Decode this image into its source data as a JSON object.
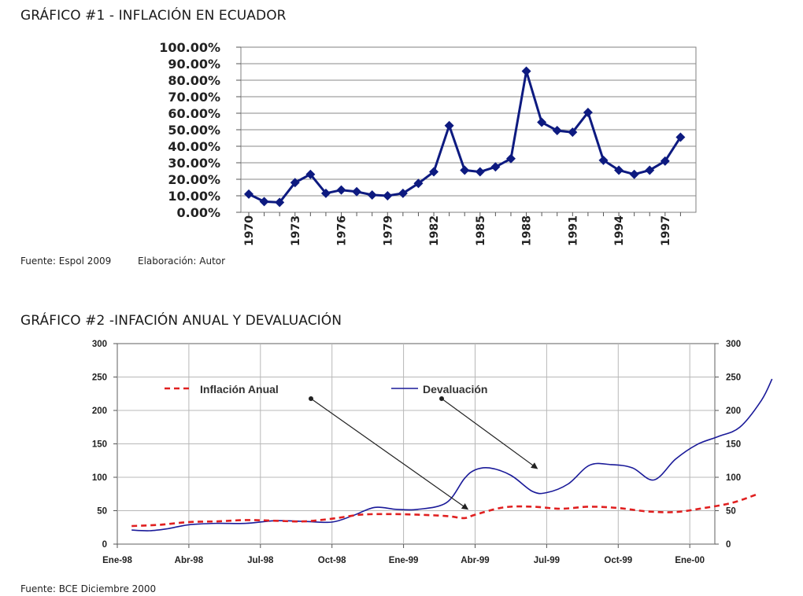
{
  "page": {
    "title1": "GRÁFICO #1 - INFLACIÓN EN ECUADOR",
    "source1": "Fuente: Espol 2009",
    "elaboration1": "Elaboración: Autor",
    "title2": "GRÁFICO #2 -INFACIÓN ANUAL Y DEVALUACIÓN",
    "source2": "Fuente: BCE Diciembre 2000"
  },
  "chart_data": [
    {
      "type": "line",
      "title": "GRÁFICO #1 - INFLACIÓN EN ECUADOR",
      "xlabel": "",
      "ylabel": "",
      "ylim": [
        0,
        100
      ],
      "yticks": [
        "0.00%",
        "10.00%",
        "20.00%",
        "30.00%",
        "40.00%",
        "50.00%",
        "60.00%",
        "70.00%",
        "80.00%",
        "90.00%",
        "100.00%"
      ],
      "xticks": [
        "1970",
        "1973",
        "1976",
        "1979",
        "1982",
        "1985",
        "1988",
        "1991",
        "1994",
        "1997"
      ],
      "grid": true,
      "color": "#0d1a80",
      "series": [
        {
          "name": "Inflación",
          "x": [
            1970,
            1971,
            1972,
            1973,
            1974,
            1975,
            1976,
            1977,
            1978,
            1979,
            1980,
            1981,
            1982,
            1983,
            1984,
            1985,
            1986,
            1987,
            1988,
            1989,
            1990,
            1991,
            1992,
            1993,
            1994,
            1995,
            1996,
            1997,
            1998
          ],
          "values": [
            11,
            6.5,
            6,
            18,
            23,
            11.5,
            13.5,
            12.5,
            10.5,
            10,
            11.5,
            17.5,
            24.5,
            52.5,
            25.5,
            24.5,
            27.5,
            32.5,
            85.5,
            54.5,
            49.5,
            48.5,
            60.5,
            31.5,
            25.5,
            23,
            25.5,
            31,
            45.5
          ]
        }
      ]
    },
    {
      "type": "line",
      "title": "GRÁFICO #2 -INFACIÓN ANUAL Y DEVALUACIÓN",
      "ylim": [
        0,
        300
      ],
      "yticks": [
        "0",
        "50",
        "100",
        "150",
        "200",
        "250",
        "300"
      ],
      "categories": [
        "Ene-98",
        "Abr-98",
        "Jul-98",
        "Oct-98",
        "Ene-99",
        "Abr-99",
        "Jul-99",
        "Oct-99",
        "Ene-00"
      ],
      "grid": true,
      "legend": "top-left",
      "series": [
        {
          "name": "Inflación Anual",
          "color": "#e02020",
          "style": "dashed",
          "x": [
            0.2,
            0.6,
            1.0,
            1.4,
            1.8,
            2.2,
            2.6,
            3.0,
            3.4,
            3.8,
            4.2,
            4.6,
            4.85,
            5.0,
            5.4,
            5.8,
            6.2,
            6.6,
            7.0,
            7.4,
            7.8,
            8.2,
            8.6,
            8.95
          ],
          "values": [
            27,
            29,
            33,
            34,
            36,
            35,
            34,
            38,
            44,
            45,
            44,
            42,
            39,
            44,
            55,
            56,
            53,
            56,
            54,
            49,
            48,
            54,
            62,
            75
          ]
        },
        {
          "name": "Devaluación",
          "color": "#1a1a99",
          "style": "solid",
          "x": [
            0.2,
            0.45,
            0.7,
            1.0,
            1.4,
            1.8,
            2.2,
            2.6,
            3.0,
            3.3,
            3.6,
            3.9,
            4.2,
            4.6,
            4.85,
            5.0,
            5.2,
            5.5,
            5.8,
            6.0,
            6.3,
            6.6,
            6.9,
            7.2,
            7.5,
            7.8,
            8.1,
            8.4,
            8.7,
            9.0,
            9.15
          ],
          "values": [
            21,
            20,
            23,
            29,
            31,
            31,
            35,
            34,
            33,
            43,
            55,
            52,
            52,
            62,
            98,
            111,
            114,
            103,
            79,
            77,
            90,
            118,
            119,
            114,
            96,
            127,
            149,
            161,
            175,
            215,
            247
          ]
        }
      ],
      "annotations": [
        "Inflación Anual",
        "Devaluación"
      ]
    }
  ]
}
